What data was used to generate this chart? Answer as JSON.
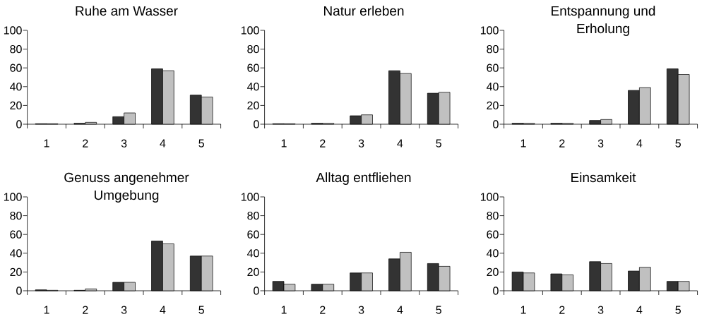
{
  "chart_data": [
    {
      "type": "bar",
      "title": "Ruhe am Wasser",
      "categories": [
        "1",
        "2",
        "3",
        "4",
        "5"
      ],
      "ylim": [
        0,
        100
      ],
      "yticks": [
        0,
        20,
        40,
        60,
        80,
        100
      ],
      "series": [
        {
          "color": "#333333",
          "values": [
            0.5,
            1,
            8,
            59,
            31
          ]
        },
        {
          "color": "#c0c0c0",
          "values": [
            0.5,
            2,
            12,
            57,
            29
          ]
        }
      ]
    },
    {
      "type": "bar",
      "title": "Natur erleben",
      "categories": [
        "1",
        "2",
        "3",
        "4",
        "5"
      ],
      "ylim": [
        0,
        100
      ],
      "yticks": [
        0,
        20,
        40,
        60,
        80,
        100
      ],
      "series": [
        {
          "color": "#333333",
          "values": [
            0.5,
            1,
            9,
            57,
            33
          ]
        },
        {
          "color": "#c0c0c0",
          "values": [
            0.5,
            1,
            10,
            54,
            34
          ]
        }
      ]
    },
    {
      "type": "bar",
      "title": "Entspannung und Erholung",
      "categories": [
        "1",
        "2",
        "3",
        "4",
        "5"
      ],
      "ylim": [
        0,
        100
      ],
      "yticks": [
        0,
        20,
        40,
        60,
        80,
        100
      ],
      "series": [
        {
          "color": "#333333",
          "values": [
            1,
            1,
            4,
            36,
            59
          ]
        },
        {
          "color": "#c0c0c0",
          "values": [
            1,
            1,
            5,
            39,
            53
          ]
        }
      ]
    },
    {
      "type": "bar",
      "title": "Genuss angenehmer Umgebung",
      "categories": [
        "1",
        "2",
        "3",
        "4",
        "5"
      ],
      "ylim": [
        0,
        100
      ],
      "yticks": [
        0,
        20,
        40,
        60,
        80,
        100
      ],
      "series": [
        {
          "color": "#333333",
          "values": [
            1,
            0.5,
            9,
            53,
            37
          ]
        },
        {
          "color": "#c0c0c0",
          "values": [
            0.5,
            2,
            9,
            50,
            37
          ]
        }
      ]
    },
    {
      "type": "bar",
      "title": "Alltag entfliehen",
      "categories": [
        "1",
        "2",
        "3",
        "4",
        "5"
      ],
      "ylim": [
        0,
        100
      ],
      "yticks": [
        0,
        20,
        40,
        60,
        80,
        100
      ],
      "series": [
        {
          "color": "#333333",
          "values": [
            10,
            7,
            19,
            34,
            29
          ]
        },
        {
          "color": "#c0c0c0",
          "values": [
            7,
            7,
            19,
            41,
            26
          ]
        }
      ]
    },
    {
      "type": "bar",
      "title": "Einsamkeit",
      "categories": [
        "1",
        "2",
        "3",
        "4",
        "5"
      ],
      "ylim": [
        0,
        100
      ],
      "yticks": [
        0,
        20,
        40,
        60,
        80,
        100
      ],
      "series": [
        {
          "color": "#333333",
          "values": [
            20,
            18,
            31,
            21,
            10
          ]
        },
        {
          "color": "#c0c0c0",
          "values": [
            19,
            17,
            29,
            25,
            10
          ]
        }
      ]
    }
  ]
}
